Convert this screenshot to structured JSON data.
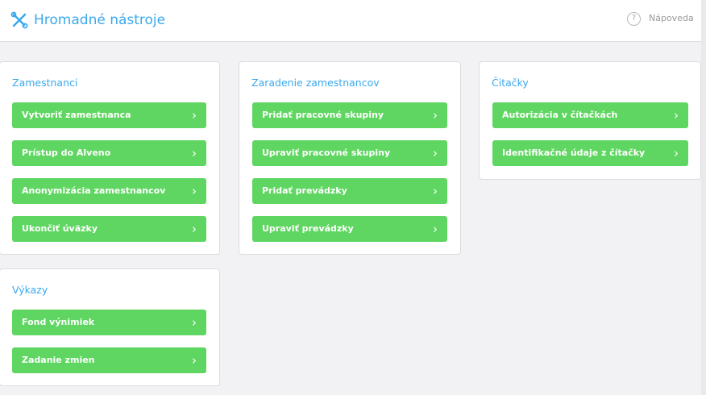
{
  "header": {
    "title": "Hromadné nástroje",
    "help_label": "Nápoveda",
    "help_icon": "?"
  },
  "colors": {
    "accent": "#3aa9ec",
    "button": "#5fd661"
  },
  "cards": [
    {
      "title": "Zamestnanci",
      "buttons": [
        "Vytvoriť zamestnanca",
        "Prístup do Alveno",
        "Anonymizácia zamestnancov",
        "Ukončiť úväzky"
      ]
    },
    {
      "title": "Zaradenie zamestnancov",
      "buttons": [
        "Pridať pracovné skupiny",
        "Upraviť pracovné skupiny",
        "Pridať prevádzky",
        "Upraviť prevádzky"
      ]
    },
    {
      "title": "Čitačky",
      "buttons": [
        "Autorizácia v čítačkách",
        "Identifikačné údaje z čítačky"
      ]
    },
    {
      "title": "Výkazy",
      "buttons": [
        "Fond výnimiek",
        "Zadanie zmien"
      ]
    }
  ]
}
